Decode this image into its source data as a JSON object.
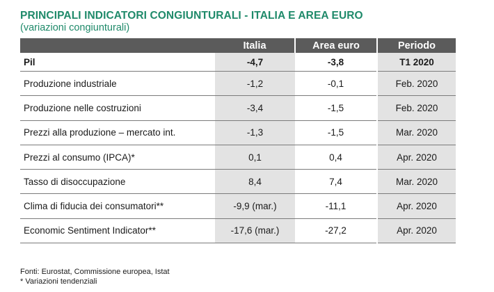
{
  "title": "PRINCIPALI INDICATORI CONGIUNTURALI - ITALIA E AREA EURO",
  "subtitle": "(variazioni congiunturali)",
  "table": {
    "headers": [
      "",
      "Italia",
      "Area euro",
      "Periodo"
    ],
    "rows": [
      {
        "label": "Pil",
        "italia": "-4,7",
        "area_euro": "-3,8",
        "periodo": "T1 2020"
      },
      {
        "label": "Produzione industriale",
        "italia": "-1,2",
        "area_euro": "-0,1",
        "periodo": "Feb. 2020"
      },
      {
        "label": "Produzione nelle costruzioni",
        "italia": "-3,4",
        "area_euro": "-1,5",
        "periodo": "Feb. 2020"
      },
      {
        "label": "Prezzi alla produzione – mercato int.",
        "italia": "-1,3",
        "area_euro": "-1,5",
        "periodo": "Mar. 2020"
      },
      {
        "label": "Prezzi al consumo (IPCA)*",
        "italia": "0,1",
        "area_euro": "0,4",
        "periodo": "Apr. 2020"
      },
      {
        "label": "Tasso di disoccupazione",
        "italia": "8,4",
        "area_euro": "7,4",
        "periodo": "Mar. 2020"
      },
      {
        "label": "Clima di fiducia dei consumatori**",
        "italia": "-9,9 (mar.)",
        "area_euro": "-11,1",
        "periodo": "Apr. 2020"
      },
      {
        "label": "Economic Sentiment Indicator**",
        "italia": "-17,6 (mar.)",
        "area_euro": "-27,2",
        "periodo": "Apr. 2020"
      }
    ]
  },
  "footnotes": [
    "Fonti: Eurostat, Commissione europea, Istat",
    "* Variazioni tendenziali"
  ],
  "colors": {
    "title": "#1f8a6a",
    "header_bg": "#5b5b5b",
    "shaded_col": "#e3e3e3"
  }
}
